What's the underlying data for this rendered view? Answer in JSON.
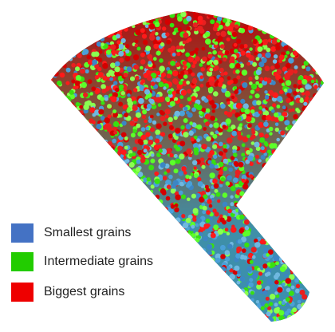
{
  "legend": {
    "items": [
      {
        "label": "Smallest grains",
        "color": "#4472c4"
      },
      {
        "label": "Intermediate grains",
        "color": "#22cc00"
      },
      {
        "label": "Biggest grains",
        "color": "#ee0000"
      }
    ]
  }
}
